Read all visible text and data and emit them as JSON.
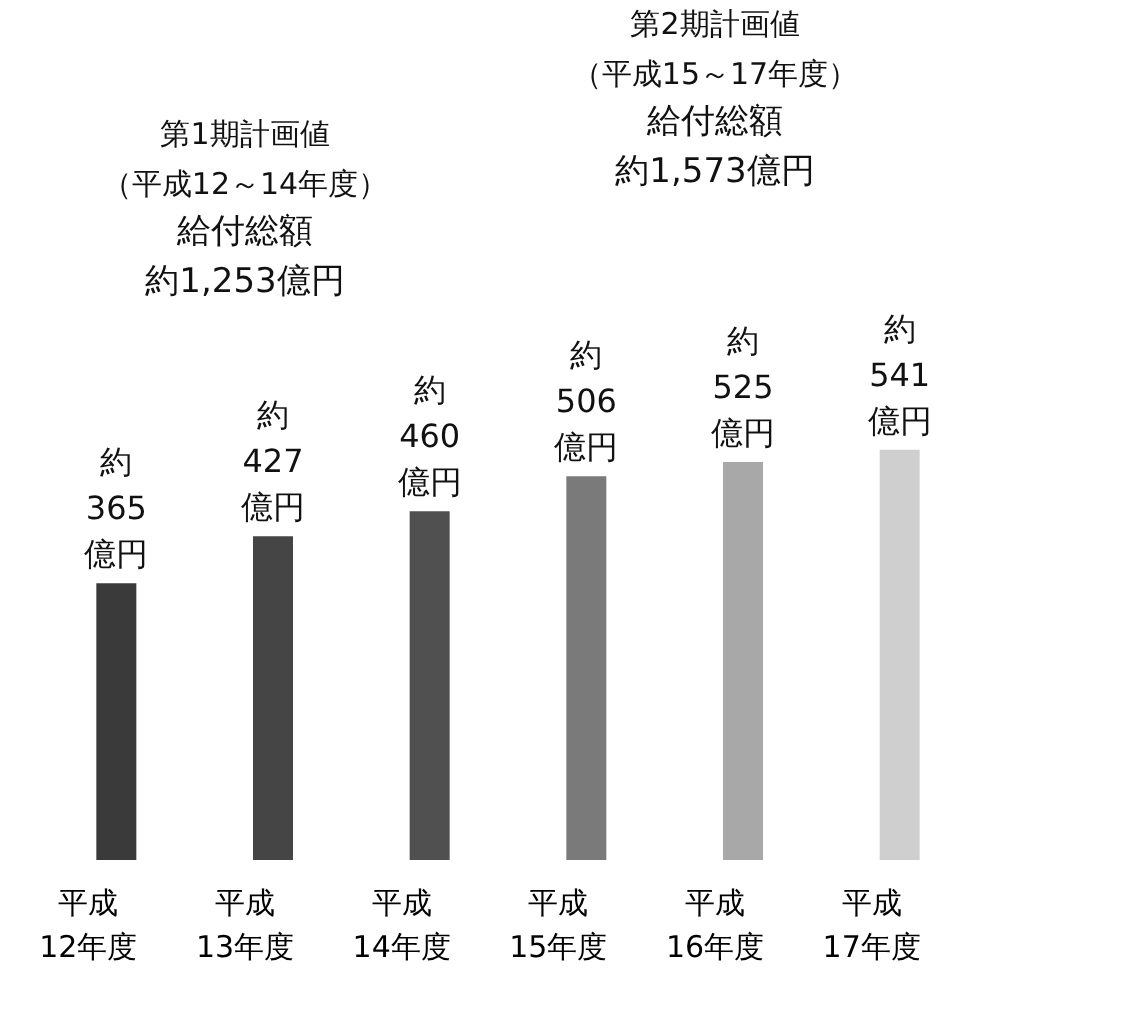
{
  "chart_data": {
    "type": "bar",
    "categories": [
      "平成\n12年度",
      "平成\n13年度",
      "平成\n14年度",
      "平成\n15年度",
      "平成\n16年度",
      "平成\n17年度"
    ],
    "values": [
      365,
      427,
      460,
      506,
      525,
      541
    ],
    "colors": [
      "#3a3a3a",
      "#454545",
      "#505050",
      "#7a7a7a",
      "#a8a8a8",
      "#cfcfcf"
    ],
    "value_labels": [
      "約\n365\n億円",
      "約\n427\n億円",
      "約\n460\n億円",
      "約\n506\n億円",
      "約\n525\n億円",
      "約\n541\n億円"
    ],
    "annotations": [
      "第1期計画値",
      "（平成12～14年度）",
      "給付総額",
      "約1,253億円",
      "第2期計画値",
      "（平成15～17年度）",
      "給付総額",
      "約1,573億円"
    ],
    "grid": false
  }
}
